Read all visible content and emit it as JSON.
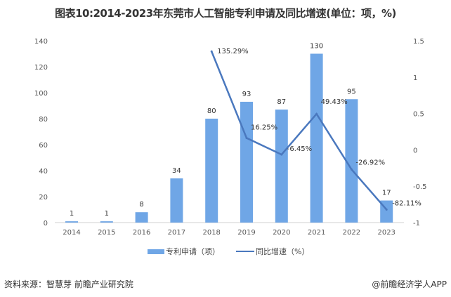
{
  "title": "图表10:2014-2023年东莞市人工智能专利申请及同比增速(单位：项，%)",
  "chart_data": {
    "type": "bar+line",
    "title": "图表10:2014-2023年东莞市人工智能专利申请及同比增速(单位：项，%)",
    "categories": [
      "2014",
      "2015",
      "2016",
      "2017",
      "2018",
      "2019",
      "2020",
      "2021",
      "2022",
      "2023"
    ],
    "series": [
      {
        "name": "专利申请（项）",
        "type": "bar",
        "axis": "left",
        "values": [
          1,
          1,
          8,
          34,
          80,
          93,
          87,
          130,
          95,
          17
        ],
        "labels": [
          "1",
          "1",
          "8",
          "34",
          "80",
          "93",
          "87",
          "130",
          "95",
          "17"
        ],
        "color": "#6fa6e6"
      },
      {
        "name": "同比增速（%）",
        "type": "line",
        "axis": "right",
        "values": [
          null,
          null,
          null,
          null,
          1.3529,
          0.1625,
          -0.0645,
          0.4943,
          -0.2692,
          -0.8211
        ],
        "labels": [
          "",
          "",
          "",
          "",
          "135.29%",
          "16.25%",
          "-6.45%",
          "49.43%",
          "-26.92%",
          "-82.11%"
        ],
        "color": "#4a78be"
      }
    ],
    "left_axis": {
      "ylim": [
        0,
        140
      ],
      "ticks": [
        "0",
        "20",
        "40",
        "60",
        "80",
        "100",
        "120",
        "140"
      ]
    },
    "right_axis": {
      "ylim": [
        -1,
        1.5
      ],
      "ticks": [
        "-1",
        "-0.5",
        "0",
        "0.5",
        "1",
        "1.5"
      ]
    },
    "grid": false,
    "legend": "bottom"
  },
  "footer": {
    "source": "资料来源：智慧芽 前瞻产业研究院",
    "credit": "@前瞻经济学人APP"
  }
}
